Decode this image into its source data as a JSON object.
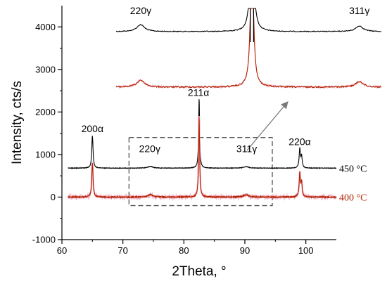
{
  "chart_data": {
    "type": "line",
    "xlabel": "2Theta, °",
    "ylabel": "Intensity, cts/s",
    "xlim": [
      60,
      105
    ],
    "ylim": [
      -1000,
      4500
    ],
    "x_ticks": [
      60,
      70,
      80,
      90,
      100
    ],
    "y_ticks": [
      -1000,
      0,
      1000,
      2000,
      3000,
      4000
    ],
    "grid": false,
    "colors": {
      "s450": "#000000",
      "s400": "#b22000",
      "s400_label": "#b22000",
      "arrow": "#7a7a7a",
      "box": "#555555"
    },
    "series": [
      {
        "name": "450 °C",
        "baseline": 680,
        "peaks": [
          {
            "x": 65.0,
            "height": 760,
            "width": 0.12
          },
          {
            "x": 82.5,
            "height": 1640,
            "width": 0.1
          },
          {
            "x": 99.0,
            "height": 450,
            "width": 0.12
          },
          {
            "x": 74.5,
            "height": 40,
            "width": 0.5
          },
          {
            "x": 90.2,
            "height": 35,
            "width": 0.5
          }
        ]
      },
      {
        "name": "400 °C",
        "baseline": 0,
        "peaks": [
          {
            "x": 65.0,
            "height": 800,
            "width": 0.12
          },
          {
            "x": 82.5,
            "height": 1900,
            "width": 0.1
          },
          {
            "x": 99.0,
            "height": 550,
            "width": 0.12
          },
          {
            "x": 74.5,
            "height": 55,
            "width": 0.5
          },
          {
            "x": 90.2,
            "height": 50,
            "width": 0.5
          }
        ]
      }
    ],
    "peak_labels": [
      {
        "text": "200α",
        "x": 65.0,
        "y": 1530
      },
      {
        "text": "211α",
        "x": 82.4,
        "y": 2380
      },
      {
        "text": "220α",
        "x": 99.0,
        "y": 1220
      },
      {
        "text": "220γ",
        "x": 74.4,
        "y": 1060
      },
      {
        "text": "311γ",
        "x": 90.3,
        "y": 1060
      }
    ],
    "zoom_region": {
      "x": [
        71,
        94.5
      ],
      "y": [
        -200,
        1400
      ]
    },
    "inset": {
      "labels": [
        {
          "text": "220γ",
          "x": 72.8,
          "y": 4300
        },
        {
          "text": "311γ",
          "x": 106.6,
          "y": 4300
        }
      ],
      "x_domain": [
        69,
        110
      ]
    }
  }
}
